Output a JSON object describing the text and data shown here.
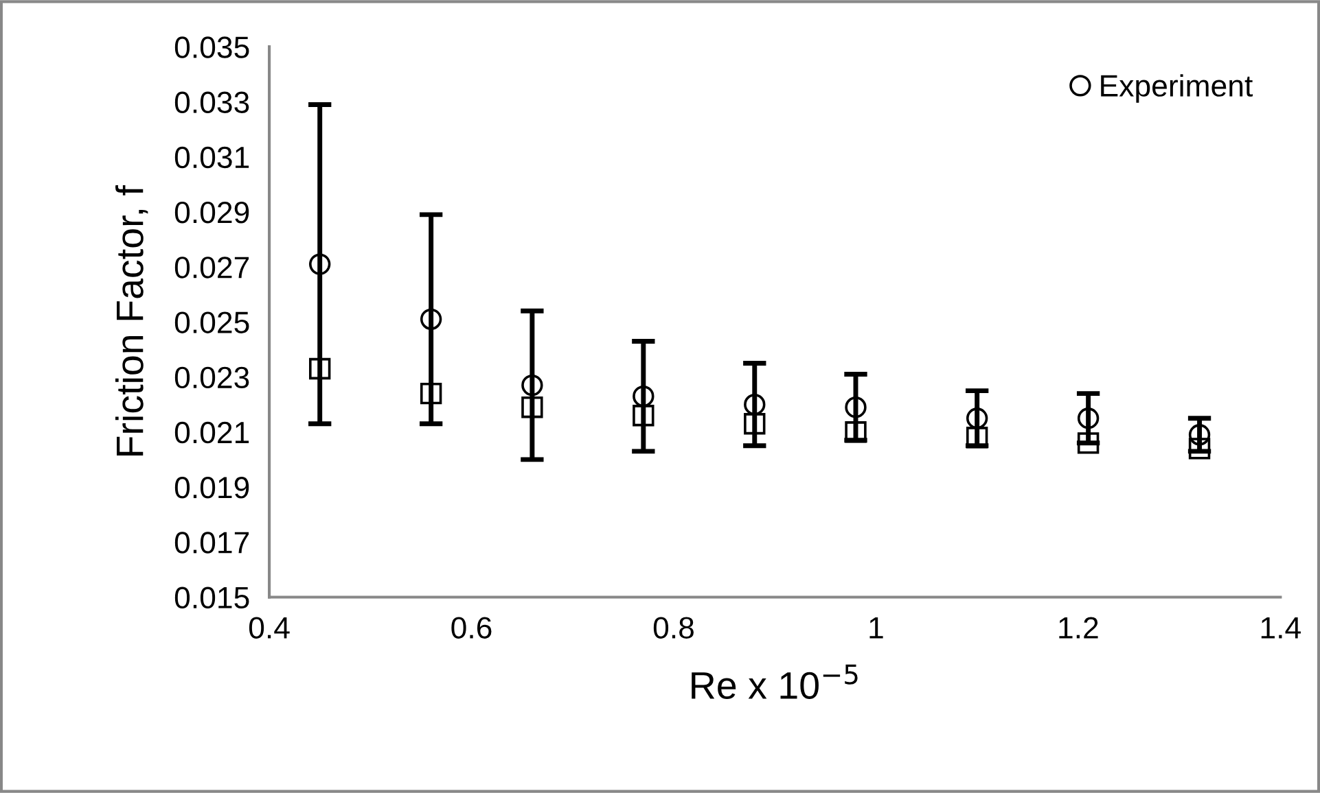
{
  "chart_data": {
    "type": "scatter",
    "xlabel": "Re x 10$^{−5}$",
    "ylabel": "Friction Factor, f",
    "xlim": [
      0.4,
      1.4
    ],
    "xticks": [
      0.4,
      0.6,
      0.8,
      1,
      1.2,
      1.4
    ],
    "ylim": [
      0.015,
      0.035
    ],
    "yticks": [
      0.015,
      0.017,
      0.019,
      0.021,
      0.023,
      0.025,
      0.027,
      0.029,
      0.031,
      0.033,
      0.035
    ],
    "grid": false,
    "legend": "top right",
    "series": [
      {
        "name": "Experiment",
        "color": "#000000",
        "marker": "circle",
        "x": [
          0.45,
          0.56,
          0.66,
          0.77,
          0.88,
          0.98,
          1.1,
          1.21,
          1.32
        ],
        "values": [
          0.0271,
          0.0251,
          0.0227,
          0.0223,
          0.022,
          0.0219,
          0.0215,
          0.0215,
          0.0209
        ],
        "errors": [
          0.0058,
          0.0038,
          0.0027,
          0.002,
          0.0015,
          0.0012,
          0.001,
          0.0009,
          0.0006
        ]
      },
      {
        "color": "#000000",
        "marker": "square",
        "x": [
          0.45,
          0.56,
          0.66,
          0.77,
          0.88,
          0.98,
          1.1,
          1.21,
          1.32
        ],
        "values": [
          0.0233,
          0.0224,
          0.0219,
          0.0216,
          0.0213,
          0.021,
          0.0208,
          0.0206,
          0.0204
        ]
      }
    ]
  }
}
